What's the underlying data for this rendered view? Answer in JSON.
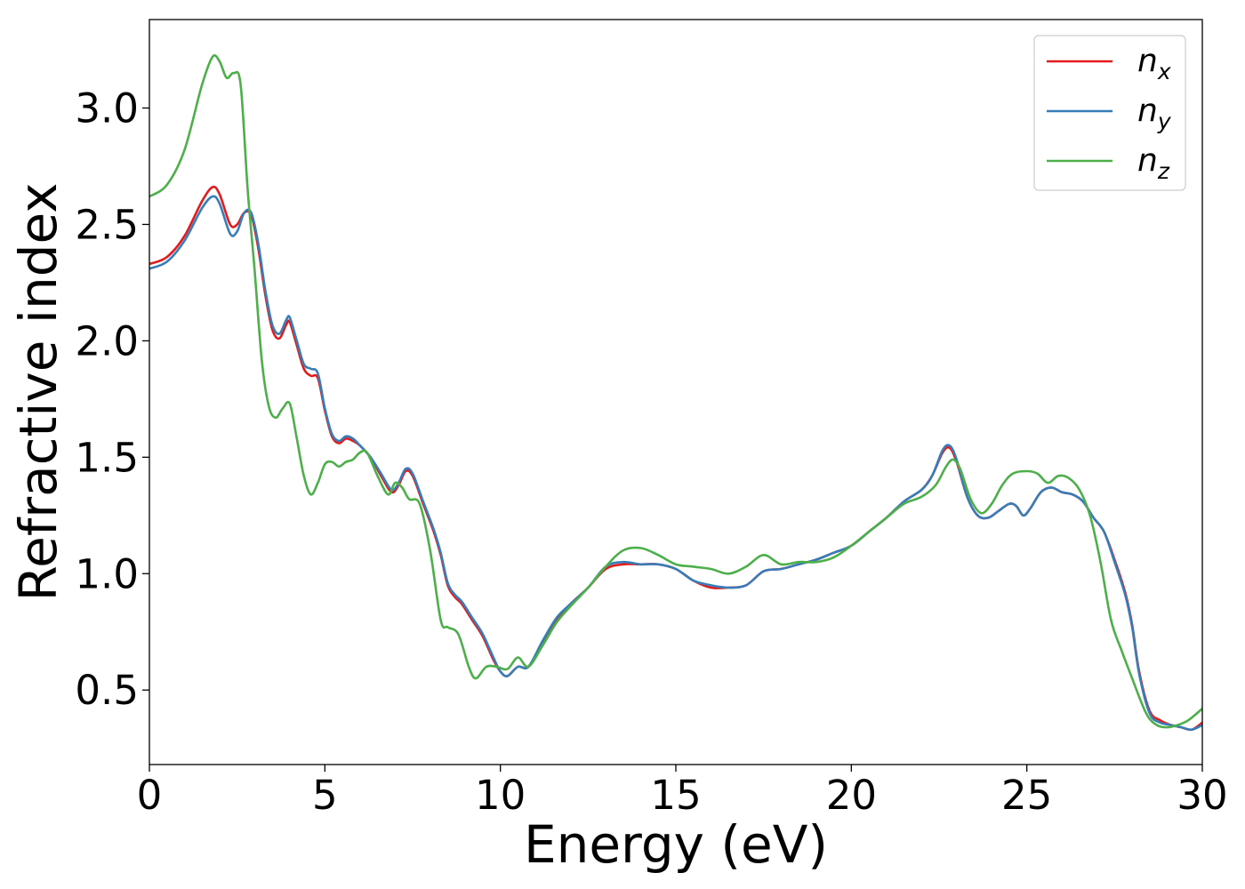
{
  "chart_data": {
    "type": "line",
    "title": "",
    "xlabel": "Energy (eV)",
    "ylabel": "Refractive index",
    "xlim": [
      0,
      30
    ],
    "ylim": [
      0.18,
      3.38
    ],
    "xticks": [
      0,
      5,
      10,
      15,
      20,
      25,
      30
    ],
    "xtick_labels": [
      "0",
      "5",
      "10",
      "15",
      "20",
      "25",
      "30"
    ],
    "yticks": [
      0.5,
      1.0,
      1.5,
      2.0,
      2.5,
      3.0
    ],
    "ytick_labels": [
      "0.5",
      "1.0",
      "1.5",
      "2.0",
      "2.5",
      "3.0"
    ],
    "grid": false,
    "legend_position": "top-right",
    "series": [
      {
        "name": "n",
        "subscript": "x",
        "color": "#e41a1c",
        "points": [
          [
            0,
            2.33
          ],
          [
            0.5,
            2.36
          ],
          [
            1.0,
            2.45
          ],
          [
            1.5,
            2.6
          ],
          [
            1.8,
            2.66
          ],
          [
            2.0,
            2.63
          ],
          [
            2.3,
            2.5
          ],
          [
            2.5,
            2.5
          ],
          [
            2.7,
            2.55
          ],
          [
            2.9,
            2.54
          ],
          [
            3.1,
            2.4
          ],
          [
            3.3,
            2.2
          ],
          [
            3.5,
            2.05
          ],
          [
            3.7,
            2.01
          ],
          [
            3.9,
            2.07
          ],
          [
            4.0,
            2.08
          ],
          [
            4.2,
            1.98
          ],
          [
            4.4,
            1.88
          ],
          [
            4.6,
            1.85
          ],
          [
            4.8,
            1.84
          ],
          [
            5.0,
            1.7
          ],
          [
            5.2,
            1.59
          ],
          [
            5.4,
            1.56
          ],
          [
            5.6,
            1.58
          ],
          [
            5.8,
            1.57
          ],
          [
            6.0,
            1.55
          ],
          [
            6.3,
            1.5
          ],
          [
            6.6,
            1.42
          ],
          [
            6.9,
            1.35
          ],
          [
            7.1,
            1.38
          ],
          [
            7.3,
            1.44
          ],
          [
            7.5,
            1.42
          ],
          [
            7.8,
            1.3
          ],
          [
            8.1,
            1.18
          ],
          [
            8.3,
            1.08
          ],
          [
            8.5,
            0.95
          ],
          [
            8.7,
            0.9
          ],
          [
            8.9,
            0.87
          ],
          [
            9.2,
            0.8
          ],
          [
            9.5,
            0.73
          ],
          [
            9.8,
            0.63
          ],
          [
            10.0,
            0.58
          ],
          [
            10.2,
            0.56
          ],
          [
            10.5,
            0.6
          ],
          [
            10.8,
            0.6
          ],
          [
            11.2,
            0.7
          ],
          [
            11.6,
            0.8
          ],
          [
            12.0,
            0.87
          ],
          [
            12.5,
            0.94
          ],
          [
            13.0,
            1.02
          ],
          [
            13.5,
            1.04
          ],
          [
            14.0,
            1.04
          ],
          [
            14.5,
            1.04
          ],
          [
            15.0,
            1.02
          ],
          [
            15.5,
            0.97
          ],
          [
            16.0,
            0.94
          ],
          [
            16.5,
            0.94
          ],
          [
            17.0,
            0.95
          ],
          [
            17.5,
            1.01
          ],
          [
            18.0,
            1.02
          ],
          [
            18.5,
            1.04
          ],
          [
            19.0,
            1.06
          ],
          [
            19.5,
            1.09
          ],
          [
            20.0,
            1.12
          ],
          [
            20.5,
            1.18
          ],
          [
            21.0,
            1.24
          ],
          [
            21.5,
            1.31
          ],
          [
            22.0,
            1.36
          ],
          [
            22.3,
            1.42
          ],
          [
            22.6,
            1.52
          ],
          [
            22.8,
            1.54
          ],
          [
            23.0,
            1.48
          ],
          [
            23.3,
            1.33
          ],
          [
            23.6,
            1.25
          ],
          [
            23.9,
            1.24
          ],
          [
            24.2,
            1.27
          ],
          [
            24.5,
            1.3
          ],
          [
            24.7,
            1.29
          ],
          [
            24.9,
            1.25
          ],
          [
            25.1,
            1.28
          ],
          [
            25.4,
            1.35
          ],
          [
            25.7,
            1.37
          ],
          [
            26.0,
            1.35
          ],
          [
            26.3,
            1.34
          ],
          [
            26.6,
            1.31
          ],
          [
            26.9,
            1.24
          ],
          [
            27.2,
            1.18
          ],
          [
            27.5,
            1.06
          ],
          [
            27.8,
            0.92
          ],
          [
            28.0,
            0.78
          ],
          [
            28.2,
            0.58
          ],
          [
            28.5,
            0.41
          ],
          [
            28.8,
            0.37
          ],
          [
            29.1,
            0.35
          ],
          [
            29.4,
            0.34
          ],
          [
            29.7,
            0.33
          ],
          [
            30.0,
            0.36
          ]
        ]
      },
      {
        "name": "n",
        "subscript": "y",
        "color": "#377eb8",
        "points": [
          [
            0,
            2.31
          ],
          [
            0.5,
            2.34
          ],
          [
            1.0,
            2.43
          ],
          [
            1.5,
            2.57
          ],
          [
            1.8,
            2.62
          ],
          [
            2.0,
            2.59
          ],
          [
            2.3,
            2.46
          ],
          [
            2.5,
            2.47
          ],
          [
            2.7,
            2.55
          ],
          [
            2.9,
            2.55
          ],
          [
            3.1,
            2.42
          ],
          [
            3.3,
            2.22
          ],
          [
            3.5,
            2.07
          ],
          [
            3.7,
            2.03
          ],
          [
            3.9,
            2.09
          ],
          [
            4.0,
            2.1
          ],
          [
            4.2,
            2.0
          ],
          [
            4.4,
            1.9
          ],
          [
            4.6,
            1.88
          ],
          [
            4.8,
            1.86
          ],
          [
            5.0,
            1.71
          ],
          [
            5.2,
            1.6
          ],
          [
            5.4,
            1.57
          ],
          [
            5.6,
            1.59
          ],
          [
            5.8,
            1.58
          ],
          [
            6.0,
            1.55
          ],
          [
            6.3,
            1.5
          ],
          [
            6.6,
            1.43
          ],
          [
            6.9,
            1.36
          ],
          [
            7.1,
            1.39
          ],
          [
            7.3,
            1.45
          ],
          [
            7.5,
            1.43
          ],
          [
            7.8,
            1.31
          ],
          [
            8.1,
            1.19
          ],
          [
            8.3,
            1.09
          ],
          [
            8.5,
            0.96
          ],
          [
            8.7,
            0.91
          ],
          [
            8.9,
            0.88
          ],
          [
            9.2,
            0.81
          ],
          [
            9.5,
            0.74
          ],
          [
            9.8,
            0.64
          ],
          [
            10.0,
            0.58
          ],
          [
            10.2,
            0.56
          ],
          [
            10.5,
            0.6
          ],
          [
            10.8,
            0.6
          ],
          [
            11.2,
            0.71
          ],
          [
            11.6,
            0.81
          ],
          [
            12.0,
            0.87
          ],
          [
            12.5,
            0.94
          ],
          [
            13.0,
            1.03
          ],
          [
            13.5,
            1.05
          ],
          [
            14.0,
            1.04
          ],
          [
            14.5,
            1.04
          ],
          [
            15.0,
            1.02
          ],
          [
            15.5,
            0.97
          ],
          [
            16.0,
            0.95
          ],
          [
            16.5,
            0.94
          ],
          [
            17.0,
            0.95
          ],
          [
            17.5,
            1.01
          ],
          [
            18.0,
            1.02
          ],
          [
            18.5,
            1.04
          ],
          [
            19.0,
            1.06
          ],
          [
            19.5,
            1.09
          ],
          [
            20.0,
            1.12
          ],
          [
            20.5,
            1.18
          ],
          [
            21.0,
            1.24
          ],
          [
            21.5,
            1.31
          ],
          [
            22.0,
            1.36
          ],
          [
            22.3,
            1.42
          ],
          [
            22.6,
            1.53
          ],
          [
            22.8,
            1.55
          ],
          [
            23.0,
            1.49
          ],
          [
            23.3,
            1.33
          ],
          [
            23.6,
            1.25
          ],
          [
            23.9,
            1.24
          ],
          [
            24.2,
            1.27
          ],
          [
            24.5,
            1.3
          ],
          [
            24.7,
            1.29
          ],
          [
            24.9,
            1.25
          ],
          [
            25.1,
            1.28
          ],
          [
            25.4,
            1.35
          ],
          [
            25.7,
            1.37
          ],
          [
            26.0,
            1.35
          ],
          [
            26.3,
            1.34
          ],
          [
            26.6,
            1.31
          ],
          [
            26.9,
            1.24
          ],
          [
            27.2,
            1.18
          ],
          [
            27.5,
            1.05
          ],
          [
            27.8,
            0.91
          ],
          [
            28.0,
            0.77
          ],
          [
            28.2,
            0.57
          ],
          [
            28.5,
            0.4
          ],
          [
            28.8,
            0.36
          ],
          [
            29.1,
            0.35
          ],
          [
            29.4,
            0.34
          ],
          [
            29.7,
            0.33
          ],
          [
            30.0,
            0.35
          ]
        ]
      },
      {
        "name": "n",
        "subscript": "z",
        "color": "#4daf4a",
        "points": [
          [
            0,
            2.62
          ],
          [
            0.5,
            2.67
          ],
          [
            1.0,
            2.82
          ],
          [
            1.5,
            3.1
          ],
          [
            1.8,
            3.22
          ],
          [
            2.0,
            3.2
          ],
          [
            2.2,
            3.13
          ],
          [
            2.4,
            3.15
          ],
          [
            2.6,
            3.1
          ],
          [
            2.8,
            2.65
          ],
          [
            3.0,
            2.3
          ],
          [
            3.2,
            1.92
          ],
          [
            3.4,
            1.72
          ],
          [
            3.6,
            1.67
          ],
          [
            3.8,
            1.71
          ],
          [
            4.0,
            1.73
          ],
          [
            4.2,
            1.58
          ],
          [
            4.4,
            1.42
          ],
          [
            4.6,
            1.34
          ],
          [
            4.8,
            1.39
          ],
          [
            5.0,
            1.47
          ],
          [
            5.2,
            1.48
          ],
          [
            5.4,
            1.46
          ],
          [
            5.6,
            1.48
          ],
          [
            5.8,
            1.49
          ],
          [
            6.0,
            1.52
          ],
          [
            6.2,
            1.52
          ],
          [
            6.5,
            1.42
          ],
          [
            6.8,
            1.34
          ],
          [
            7.0,
            1.39
          ],
          [
            7.2,
            1.37
          ],
          [
            7.4,
            1.32
          ],
          [
            7.7,
            1.3
          ],
          [
            8.0,
            1.1
          ],
          [
            8.3,
            0.8
          ],
          [
            8.5,
            0.77
          ],
          [
            8.8,
            0.74
          ],
          [
            9.1,
            0.6
          ],
          [
            9.3,
            0.55
          ],
          [
            9.6,
            0.6
          ],
          [
            9.9,
            0.6
          ],
          [
            10.2,
            0.59
          ],
          [
            10.5,
            0.64
          ],
          [
            10.8,
            0.6
          ],
          [
            11.2,
            0.69
          ],
          [
            11.6,
            0.79
          ],
          [
            12.0,
            0.86
          ],
          [
            12.5,
            0.94
          ],
          [
            13.0,
            1.03
          ],
          [
            13.5,
            1.1
          ],
          [
            14.0,
            1.11
          ],
          [
            14.5,
            1.08
          ],
          [
            15.0,
            1.04
          ],
          [
            15.5,
            1.03
          ],
          [
            16.0,
            1.02
          ],
          [
            16.5,
            1.0
          ],
          [
            17.0,
            1.03
          ],
          [
            17.5,
            1.08
          ],
          [
            18.0,
            1.04
          ],
          [
            18.5,
            1.05
          ],
          [
            19.0,
            1.05
          ],
          [
            19.5,
            1.07
          ],
          [
            20.0,
            1.12
          ],
          [
            20.5,
            1.18
          ],
          [
            21.0,
            1.24
          ],
          [
            21.5,
            1.3
          ],
          [
            22.0,
            1.33
          ],
          [
            22.4,
            1.38
          ],
          [
            22.7,
            1.46
          ],
          [
            22.9,
            1.49
          ],
          [
            23.1,
            1.45
          ],
          [
            23.4,
            1.32
          ],
          [
            23.7,
            1.26
          ],
          [
            24.0,
            1.3
          ],
          [
            24.3,
            1.38
          ],
          [
            24.6,
            1.43
          ],
          [
            25.0,
            1.44
          ],
          [
            25.3,
            1.43
          ],
          [
            25.6,
            1.39
          ],
          [
            25.9,
            1.42
          ],
          [
            26.2,
            1.41
          ],
          [
            26.5,
            1.36
          ],
          [
            26.8,
            1.25
          ],
          [
            27.1,
            1.05
          ],
          [
            27.4,
            0.8
          ],
          [
            27.7,
            0.67
          ],
          [
            28.0,
            0.55
          ],
          [
            28.4,
            0.4
          ],
          [
            28.7,
            0.35
          ],
          [
            29.0,
            0.34
          ],
          [
            29.3,
            0.35
          ],
          [
            29.6,
            0.37
          ],
          [
            30.0,
            0.42
          ]
        ]
      }
    ]
  }
}
